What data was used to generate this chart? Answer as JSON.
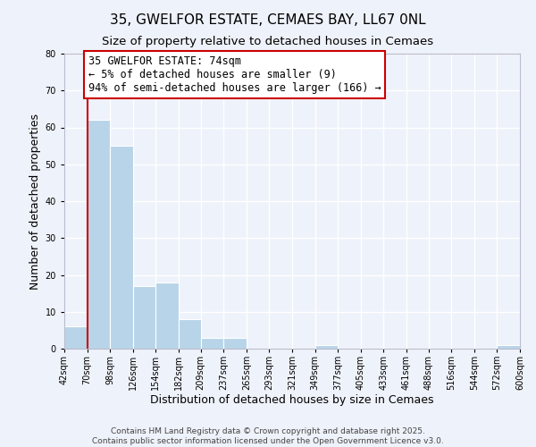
{
  "title": "35, GWELFOR ESTATE, CEMAES BAY, LL67 0NL",
  "subtitle": "Size of property relative to detached houses in Cemaes",
  "xlabel": "Distribution of detached houses by size in Cemaes",
  "ylabel": "Number of detached properties",
  "bar_color": "#b8d4e8",
  "background_color": "#eef2fa",
  "grid_color": "#ffffff",
  "bin_labels": [
    "42sqm",
    "70sqm",
    "98sqm",
    "126sqm",
    "154sqm",
    "182sqm",
    "209sqm",
    "237sqm",
    "265sqm",
    "293sqm",
    "321sqm",
    "349sqm",
    "377sqm",
    "405sqm",
    "433sqm",
    "461sqm",
    "488sqm",
    "516sqm",
    "544sqm",
    "572sqm",
    "600sqm"
  ],
  "bar_heights": [
    6,
    62,
    55,
    17,
    18,
    8,
    3,
    3,
    0,
    0,
    0,
    1,
    0,
    0,
    0,
    0,
    0,
    0,
    0,
    1,
    0
  ],
  "ylim": [
    0,
    80
  ],
  "yticks": [
    0,
    10,
    20,
    30,
    40,
    50,
    60,
    70,
    80
  ],
  "annotation_line1": "35 GWELFOR ESTATE: 74sqm",
  "annotation_line2": "← 5% of detached houses are smaller (9)",
  "annotation_line3": "94% of semi-detached houses are larger (166) →",
  "footer1": "Contains HM Land Registry data © Crown copyright and database right 2025.",
  "footer2": "Contains public sector information licensed under the Open Government Licence v3.0.",
  "title_fontsize": 11,
  "subtitle_fontsize": 9.5,
  "axis_label_fontsize": 9,
  "tick_fontsize": 7,
  "annotation_fontsize": 8.5,
  "footer_fontsize": 6.5,
  "red_line_color": "#cc0000",
  "annotation_box_edge": "#cc0000",
  "bin_edges": [
    42,
    70,
    98,
    126,
    154,
    182,
    209,
    237,
    265,
    293,
    321,
    349,
    377,
    405,
    433,
    461,
    488,
    516,
    544,
    572,
    600
  ]
}
